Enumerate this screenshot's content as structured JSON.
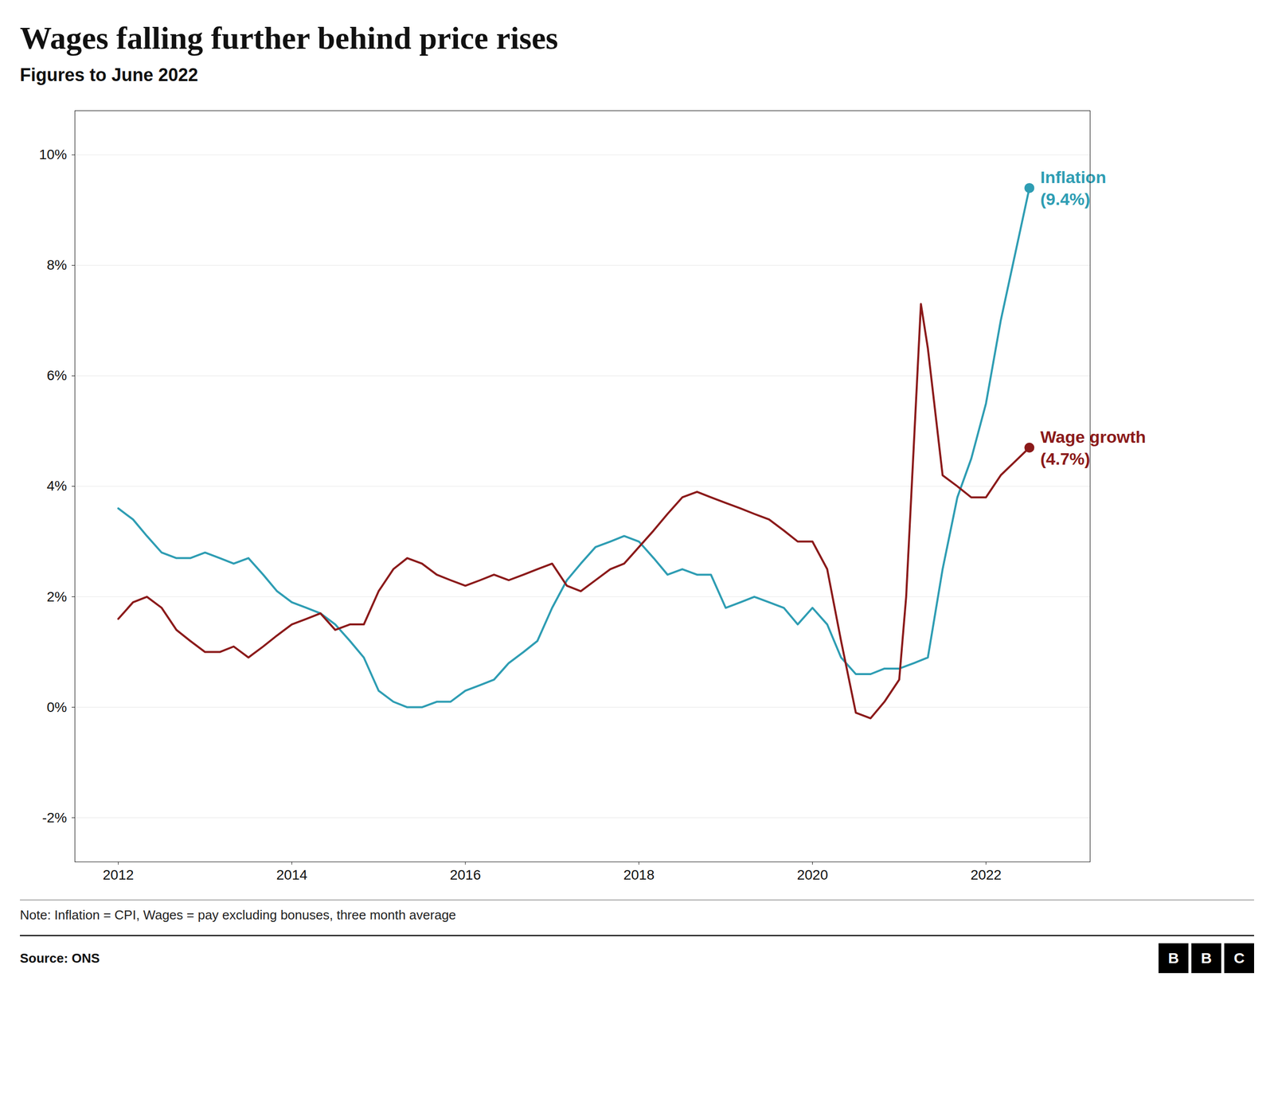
{
  "chart_data": {
    "type": "line",
    "title": "Wages falling further behind price rises",
    "subtitle": "Figures to June 2022",
    "note": "Note: Inflation = CPI, Wages = pay excluding bonuses, three month average",
    "source": "Source: ONS",
    "logo": [
      "B",
      "B",
      "C"
    ],
    "xlim": [
      2011.5,
      2023.2
    ],
    "xticks": [
      2012,
      2014,
      2016,
      2018,
      2020,
      2022
    ],
    "ylim": [
      -2.8,
      10.8
    ],
    "yticks": [
      {
        "value": -2,
        "label": "-2%"
      },
      {
        "value": 0,
        "label": "0%"
      },
      {
        "value": 2,
        "label": "2%"
      },
      {
        "value": 4,
        "label": "4%"
      },
      {
        "value": 6,
        "label": "6%"
      },
      {
        "value": 8,
        "label": "8%"
      },
      {
        "value": 10,
        "label": "10%"
      }
    ],
    "grid": true,
    "series": [
      {
        "name": "Inflation",
        "color": "#2E9DB3",
        "x": [
          2012.0,
          2012.17,
          2012.33,
          2012.5,
          2012.67,
          2012.83,
          2013.0,
          2013.17,
          2013.33,
          2013.5,
          2013.67,
          2013.83,
          2014.0,
          2014.17,
          2014.33,
          2014.5,
          2014.67,
          2014.83,
          2015.0,
          2015.17,
          2015.33,
          2015.5,
          2015.67,
          2015.83,
          2016.0,
          2016.17,
          2016.33,
          2016.5,
          2016.67,
          2016.83,
          2017.0,
          2017.17,
          2017.33,
          2017.5,
          2017.67,
          2017.83,
          2018.0,
          2018.17,
          2018.33,
          2018.5,
          2018.67,
          2018.83,
          2019.0,
          2019.17,
          2019.33,
          2019.5,
          2019.67,
          2019.83,
          2020.0,
          2020.17,
          2020.33,
          2020.5,
          2020.67,
          2020.83,
          2021.0,
          2021.17,
          2021.33,
          2021.5,
          2021.67,
          2021.83,
          2022.0,
          2022.17,
          2022.5
        ],
        "values": [
          3.6,
          3.4,
          3.1,
          2.8,
          2.7,
          2.7,
          2.8,
          2.7,
          2.6,
          2.7,
          2.4,
          2.1,
          1.9,
          1.8,
          1.7,
          1.5,
          1.2,
          0.9,
          0.3,
          0.1,
          0.0,
          0.0,
          0.1,
          0.1,
          0.3,
          0.4,
          0.5,
          0.8,
          1.0,
          1.2,
          1.8,
          2.3,
          2.6,
          2.9,
          3.0,
          3.1,
          3.0,
          2.7,
          2.4,
          2.5,
          2.4,
          2.4,
          1.8,
          1.9,
          2.0,
          1.9,
          1.8,
          1.5,
          1.8,
          1.5,
          0.9,
          0.6,
          0.6,
          0.7,
          0.7,
          0.8,
          0.9,
          2.5,
          3.8,
          4.5,
          5.5,
          7.0,
          9.4
        ]
      },
      {
        "name": "Wage growth",
        "color": "#8B1A1A",
        "x": [
          2012.0,
          2012.17,
          2012.33,
          2012.5,
          2012.67,
          2012.83,
          2013.0,
          2013.17,
          2013.33,
          2013.5,
          2013.67,
          2013.83,
          2014.0,
          2014.17,
          2014.33,
          2014.5,
          2014.67,
          2014.83,
          2015.0,
          2015.17,
          2015.33,
          2015.5,
          2015.67,
          2015.83,
          2016.0,
          2016.17,
          2016.33,
          2016.5,
          2016.67,
          2016.83,
          2017.0,
          2017.17,
          2017.33,
          2017.5,
          2017.67,
          2017.83,
          2018.0,
          2018.17,
          2018.33,
          2018.5,
          2018.67,
          2018.83,
          2019.0,
          2019.17,
          2019.33,
          2019.5,
          2019.67,
          2019.83,
          2020.0,
          2020.17,
          2020.33,
          2020.5,
          2020.67,
          2020.83,
          2021.0,
          2021.08,
          2021.17,
          2021.25,
          2021.33,
          2021.5,
          2021.67,
          2021.83,
          2022.0,
          2022.17,
          2022.5
        ],
        "values": [
          1.6,
          1.9,
          2.0,
          1.8,
          1.4,
          1.2,
          1.0,
          1.0,
          1.1,
          0.9,
          1.1,
          1.3,
          1.5,
          1.6,
          1.7,
          1.4,
          1.5,
          1.5,
          2.1,
          2.5,
          2.7,
          2.6,
          2.4,
          2.3,
          2.2,
          2.3,
          2.4,
          2.3,
          2.4,
          2.5,
          2.6,
          2.2,
          2.1,
          2.3,
          2.5,
          2.6,
          2.9,
          3.2,
          3.5,
          3.8,
          3.9,
          3.8,
          3.7,
          3.6,
          3.5,
          3.4,
          3.2,
          3.0,
          3.0,
          2.5,
          1.2,
          -0.1,
          -0.2,
          0.1,
          0.5,
          2.0,
          4.8,
          7.3,
          6.5,
          4.2,
          4.0,
          3.8,
          3.8,
          4.2,
          4.7
        ]
      }
    ],
    "annotations": [
      {
        "text": "(9.4%)",
        "x": 2022.5,
        "y": 9.4,
        "color": "#2E9DB3"
      },
      {
        "text": "(4.7%)",
        "x": 2022.5,
        "y": 4.7,
        "color": "#8B1A1A"
      }
    ]
  }
}
